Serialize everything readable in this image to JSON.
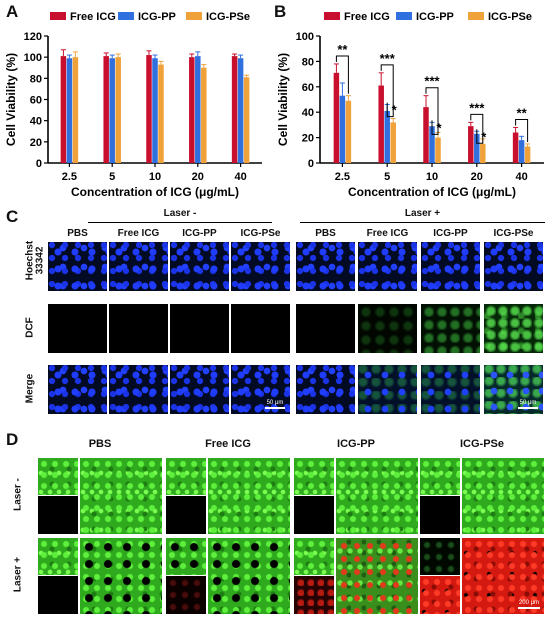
{
  "panels": {
    "a": "A",
    "b": "B",
    "c": "C",
    "d": "D"
  },
  "chart_data": [
    {
      "type": "bar",
      "ylabel": "Cell Viability (%)",
      "xlabel": "Concentration of ICG (μg/mL)",
      "categories": [
        "2.5",
        "5",
        "10",
        "20",
        "40"
      ],
      "ylim": [
        0,
        120
      ],
      "yticks": [
        "0",
        "20",
        "40",
        "60",
        "80",
        "100",
        "120"
      ],
      "legend_position": "top",
      "series": [
        {
          "name": "Free ICG",
          "color": "#c8102e",
          "values": [
            101,
            101,
            102,
            100,
            101
          ],
          "errors": [
            6,
            3,
            4,
            3,
            2
          ]
        },
        {
          "name": "ICG-PP",
          "color": "#2f6fde",
          "values": [
            99,
            99,
            99,
            101,
            99
          ],
          "errors": [
            3,
            3,
            3,
            4,
            3
          ]
        },
        {
          "name": "ICG-PSe",
          "color": "#f0a23a",
          "values": [
            100,
            100,
            93,
            90,
            81
          ],
          "errors": [
            5,
            3,
            3,
            3,
            2
          ]
        }
      ]
    },
    {
      "type": "bar",
      "ylabel": "Cell Viability (%)",
      "xlabel": "Concentration of ICG (μg/mL)",
      "categories": [
        "2.5",
        "5",
        "10",
        "20",
        "40"
      ],
      "ylim": [
        0,
        100
      ],
      "yticks": [
        "0",
        "20",
        "40",
        "60",
        "80",
        "100"
      ],
      "legend_position": "top",
      "series": [
        {
          "name": "Free ICG",
          "color": "#c8102e",
          "values": [
            71,
            61,
            44,
            29,
            24
          ],
          "errors": [
            7,
            10,
            9,
            3,
            4
          ]
        },
        {
          "name": "ICG-PP",
          "color": "#2f6fde",
          "values": [
            53,
            41,
            29,
            23,
            18
          ],
          "errors": [
            10,
            5,
            3,
            2,
            3
          ]
        },
        {
          "name": "ICG-PSe",
          "color": "#f0a23a",
          "values": [
            49,
            32,
            20,
            15,
            13
          ],
          "errors": [
            4,
            3,
            4,
            4,
            2
          ]
        }
      ],
      "significance": [
        {
          "category": "2.5",
          "pair": [
            "Free ICG",
            "ICG-PSe"
          ],
          "label": "**"
        },
        {
          "category": "5",
          "pair": [
            "Free ICG",
            "ICG-PSe"
          ],
          "label": "***"
        },
        {
          "category": "5",
          "pair": [
            "ICG-PP",
            "ICG-PSe"
          ],
          "label": "*"
        },
        {
          "category": "10",
          "pair": [
            "Free ICG",
            "ICG-PSe"
          ],
          "label": "***"
        },
        {
          "category": "10",
          "pair": [
            "ICG-PP",
            "ICG-PSe"
          ],
          "label": "*"
        },
        {
          "category": "20",
          "pair": [
            "Free ICG",
            "ICG-PSe"
          ],
          "label": "***"
        },
        {
          "category": "20",
          "pair": [
            "ICG-PP",
            "ICG-PSe"
          ],
          "label": "*"
        },
        {
          "category": "40",
          "pair": [
            "Free ICG",
            "ICG-PSe"
          ],
          "label": "**"
        }
      ]
    }
  ],
  "panel_c": {
    "groups": [
      "Laser -",
      "Laser +"
    ],
    "columns": [
      "PBS",
      "Free ICG",
      "ICG-PP",
      "ICG-PSe"
    ],
    "rows": [
      "Hoechst 33342",
      "DCF",
      "Merge"
    ],
    "scale_label": "50 μm"
  },
  "panel_d": {
    "columns": [
      "PBS",
      "Free ICG",
      "ICG-PP",
      "ICG-PSe"
    ],
    "rows": [
      "Laser -",
      "Laser +"
    ],
    "scale_label": "200 μm"
  }
}
